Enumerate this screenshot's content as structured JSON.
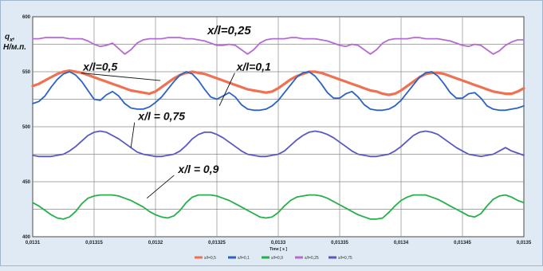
{
  "chart_data": {
    "type": "line",
    "title": "",
    "xlabel": "Time [ s ]",
    "ylabel": "q_x, Н/м.п.",
    "ylabel_main": "q",
    "ylabel_sub": "x",
    "ylabel_unit": "Н/м.п.",
    "xlim": [
      0.0131,
      0.0135
    ],
    "ylim": [
      400,
      600
    ],
    "grid": true,
    "legend_position": "bottom-center",
    "x_ticks": [
      "0,0131",
      "0,01315",
      "0,0132",
      "0,01325",
      "0,0133",
      "0,01335",
      "0,0134",
      "0,01345",
      "0,0135"
    ],
    "y_ticks": [
      "400",
      "450",
      "500",
      "550",
      "600"
    ],
    "x_tick_values": [
      0.0131,
      0.01315,
      0.0132,
      0.01325,
      0.0133,
      0.01335,
      0.0134,
      0.01345,
      0.0135
    ],
    "y_tick_values": [
      400,
      450,
      500,
      550,
      600
    ],
    "annotations": [
      {
        "text": "x/l=0,25",
        "x": 0.01326,
        "y": 584,
        "style": "top"
      },
      {
        "text": "x/l=0,5",
        "x": 0.013155,
        "y": 551,
        "style": "normal",
        "pointer": {
          "x": 0.013204,
          "y": 542
        }
      },
      {
        "text": "x/l=0,1",
        "x": 0.01328,
        "y": 551,
        "style": "normal",
        "pointer": {
          "x": 0.013252,
          "y": 519
        }
      },
      {
        "text": "x/l = 0,75",
        "x": 0.013205,
        "y": 506,
        "style": "normal",
        "pointer": {
          "x": 0.01318,
          "y": 481
        }
      },
      {
        "text": "x/l = 0,9",
        "x": 0.013235,
        "y": 458,
        "style": "normal",
        "pointer": {
          "x": 0.013193,
          "y": 435
        }
      }
    ],
    "series": [
      {
        "name": "x/l=0,5",
        "color": "#f07052",
        "width": 3.2,
        "x": [
          0.0131,
          0.013105,
          0.01311,
          0.013115,
          0.01312,
          0.013125,
          0.01313,
          0.013135,
          0.01314,
          0.013145,
          0.01315,
          0.013155,
          0.01316,
          0.013165,
          0.01317,
          0.013175,
          0.01318,
          0.013185,
          0.01319,
          0.013195,
          0.0132,
          0.013205,
          0.01321,
          0.013215,
          0.01322,
          0.013225,
          0.01323,
          0.013235,
          0.01324,
          0.013245,
          0.01325,
          0.013255,
          0.01326,
          0.013265,
          0.01327,
          0.013275,
          0.01328,
          0.013285,
          0.01329,
          0.013295,
          0.0133,
          0.013305,
          0.01331,
          0.013315,
          0.01332,
          0.013325,
          0.01333,
          0.013335,
          0.01334,
          0.013345,
          0.01335,
          0.013355,
          0.01336,
          0.013365,
          0.01337,
          0.013375,
          0.01338,
          0.013385,
          0.01339,
          0.013395,
          0.0134,
          0.013405,
          0.01341,
          0.013415,
          0.01342,
          0.013425,
          0.01343,
          0.013435,
          0.01344,
          0.013445,
          0.01345,
          0.013455,
          0.01346,
          0.013465,
          0.01347,
          0.013475,
          0.01348,
          0.013485,
          0.01349,
          0.013495,
          0.0135
        ],
        "y": [
          537,
          539,
          542,
          545,
          548,
          550,
          551,
          550,
          549,
          547,
          545,
          543,
          541,
          539,
          537,
          535,
          533,
          532,
          531,
          530,
          532,
          536,
          540,
          544,
          547,
          549,
          550,
          549,
          548,
          546,
          544,
          542,
          540,
          538,
          536,
          534,
          533,
          532,
          531,
          532,
          535,
          539,
          543,
          546,
          548,
          550,
          550,
          549,
          547,
          545,
          543,
          541,
          539,
          537,
          535,
          533,
          532,
          530,
          529,
          530,
          533,
          537,
          541,
          545,
          548,
          549,
          549,
          548,
          546,
          544,
          542,
          540,
          538,
          536,
          534,
          532,
          531,
          530,
          530,
          532,
          535
        ]
      },
      {
        "name": "x/l=0,1",
        "color": "#2c62c4",
        "width": 1.8,
        "x": [
          0.0131,
          0.013105,
          0.01311,
          0.013115,
          0.01312,
          0.013125,
          0.01313,
          0.013135,
          0.01314,
          0.013145,
          0.01315,
          0.013155,
          0.01316,
          0.013165,
          0.01317,
          0.013175,
          0.01318,
          0.013185,
          0.01319,
          0.013195,
          0.0132,
          0.013205,
          0.01321,
          0.013215,
          0.01322,
          0.013225,
          0.01323,
          0.013235,
          0.01324,
          0.013245,
          0.01325,
          0.013255,
          0.01326,
          0.013265,
          0.01327,
          0.013275,
          0.01328,
          0.013285,
          0.01329,
          0.013295,
          0.0133,
          0.013305,
          0.01331,
          0.013315,
          0.01332,
          0.013325,
          0.01333,
          0.013335,
          0.01334,
          0.013345,
          0.01335,
          0.013355,
          0.01336,
          0.013365,
          0.01337,
          0.013375,
          0.01338,
          0.013385,
          0.01339,
          0.013395,
          0.0134,
          0.013405,
          0.01341,
          0.013415,
          0.01342,
          0.013425,
          0.01343,
          0.013435,
          0.01344,
          0.013445,
          0.01345,
          0.013455,
          0.01346,
          0.013465,
          0.01347,
          0.013475,
          0.01348,
          0.013485,
          0.01349,
          0.013495,
          0.0135
        ],
        "y": [
          521,
          523,
          528,
          536,
          543,
          548,
          550,
          547,
          541,
          533,
          525,
          524,
          529,
          532,
          528,
          521,
          517,
          516,
          516,
          518,
          522,
          527,
          534,
          541,
          547,
          550,
          548,
          542,
          534,
          527,
          525,
          528,
          531,
          527,
          520,
          516,
          515,
          515,
          516,
          519,
          524,
          531,
          538,
          545,
          549,
          550,
          546,
          539,
          531,
          526,
          526,
          530,
          532,
          527,
          520,
          516,
          515,
          515,
          516,
          519,
          524,
          531,
          538,
          545,
          549,
          550,
          546,
          539,
          531,
          526,
          526,
          530,
          531,
          526,
          519,
          516,
          515,
          515,
          516,
          517,
          519
        ]
      },
      {
        "name": "x/l=0,9",
        "color": "#26b04a",
        "width": 1.8,
        "x": [
          0.0131,
          0.013105,
          0.01311,
          0.013115,
          0.01312,
          0.013125,
          0.01313,
          0.013135,
          0.01314,
          0.013145,
          0.01315,
          0.013155,
          0.01316,
          0.013165,
          0.01317,
          0.013175,
          0.01318,
          0.013185,
          0.01319,
          0.013195,
          0.0132,
          0.013205,
          0.01321,
          0.013215,
          0.01322,
          0.013225,
          0.01323,
          0.013235,
          0.01324,
          0.013245,
          0.01325,
          0.013255,
          0.01326,
          0.013265,
          0.01327,
          0.013275,
          0.01328,
          0.013285,
          0.01329,
          0.013295,
          0.0133,
          0.013305,
          0.01331,
          0.013315,
          0.01332,
          0.013325,
          0.01333,
          0.013335,
          0.01334,
          0.013345,
          0.01335,
          0.013355,
          0.01336,
          0.013365,
          0.01337,
          0.013375,
          0.01338,
          0.013385,
          0.01339,
          0.013395,
          0.0134,
          0.013405,
          0.01341,
          0.013415,
          0.01342,
          0.013425,
          0.01343,
          0.013435,
          0.01344,
          0.013445,
          0.01345,
          0.013455,
          0.01346,
          0.013465,
          0.01347,
          0.013475,
          0.01348,
          0.013485,
          0.01349,
          0.013495,
          0.0135
        ],
        "y": [
          431,
          428,
          424,
          420,
          417,
          416,
          418,
          423,
          430,
          435,
          437,
          438,
          438,
          438,
          437,
          435,
          433,
          430,
          427,
          423,
          420,
          418,
          417,
          419,
          424,
          431,
          436,
          438,
          438,
          438,
          437,
          435,
          433,
          430,
          427,
          424,
          421,
          418,
          417,
          418,
          422,
          428,
          433,
          436,
          437,
          438,
          438,
          437,
          435,
          432,
          429,
          426,
          423,
          420,
          418,
          416,
          416,
          417,
          422,
          428,
          433,
          436,
          438,
          438,
          438,
          436,
          434,
          431,
          428,
          425,
          422,
          419,
          418,
          421,
          428,
          434,
          437,
          438,
          436,
          433,
          431
        ]
      },
      {
        "name": "x/l=0,25",
        "color": "#b56bd1",
        "width": 1.8,
        "x": [
          0.0131,
          0.013105,
          0.01311,
          0.013115,
          0.01312,
          0.013125,
          0.01313,
          0.013135,
          0.01314,
          0.013145,
          0.01315,
          0.013155,
          0.01316,
          0.013165,
          0.01317,
          0.013175,
          0.01318,
          0.013185,
          0.01319,
          0.013195,
          0.0132,
          0.013205,
          0.01321,
          0.013215,
          0.01322,
          0.013225,
          0.01323,
          0.013235,
          0.01324,
          0.013245,
          0.01325,
          0.013255,
          0.01326,
          0.013265,
          0.01327,
          0.013275,
          0.01328,
          0.013285,
          0.01329,
          0.013295,
          0.0133,
          0.013305,
          0.01331,
          0.013315,
          0.01332,
          0.013325,
          0.01333,
          0.013335,
          0.01334,
          0.013345,
          0.01335,
          0.013355,
          0.01336,
          0.013365,
          0.01337,
          0.013375,
          0.01338,
          0.013385,
          0.01339,
          0.013395,
          0.0134,
          0.013405,
          0.01341,
          0.013415,
          0.01342,
          0.013425,
          0.01343,
          0.013435,
          0.01344,
          0.013445,
          0.01345,
          0.013455,
          0.01346,
          0.013465,
          0.01347,
          0.013475,
          0.01348,
          0.013485,
          0.01349,
          0.013495,
          0.0135
        ],
        "y": [
          580,
          580,
          581,
          581,
          581,
          581,
          580,
          580,
          580,
          578,
          575,
          573,
          574,
          576,
          571,
          566,
          570,
          576,
          579,
          580,
          580,
          580,
          581,
          581,
          581,
          580,
          580,
          579,
          578,
          576,
          574,
          574,
          575,
          574,
          570,
          566,
          570,
          576,
          579,
          580,
          580,
          580,
          581,
          581,
          580,
          580,
          580,
          579,
          578,
          576,
          574,
          573,
          575,
          574,
          570,
          566,
          570,
          576,
          579,
          580,
          580,
          580,
          581,
          581,
          580,
          580,
          580,
          579,
          578,
          576,
          574,
          573,
          575,
          574,
          570,
          566,
          569,
          574,
          577,
          579,
          579
        ]
      },
      {
        "name": "x/l=0,75",
        "color": "#5858c4",
        "width": 1.8,
        "x": [
          0.0131,
          0.013105,
          0.01311,
          0.013115,
          0.01312,
          0.013125,
          0.01313,
          0.013135,
          0.01314,
          0.013145,
          0.01315,
          0.013155,
          0.01316,
          0.013165,
          0.01317,
          0.013175,
          0.01318,
          0.013185,
          0.01319,
          0.013195,
          0.0132,
          0.013205,
          0.01321,
          0.013215,
          0.01322,
          0.013225,
          0.01323,
          0.013235,
          0.01324,
          0.013245,
          0.01325,
          0.013255,
          0.01326,
          0.013265,
          0.01327,
          0.013275,
          0.01328,
          0.013285,
          0.01329,
          0.013295,
          0.0133,
          0.013305,
          0.01331,
          0.013315,
          0.01332,
          0.013325,
          0.01333,
          0.013335,
          0.01334,
          0.013345,
          0.01335,
          0.013355,
          0.01336,
          0.013365,
          0.01337,
          0.013375,
          0.01338,
          0.013385,
          0.01339,
          0.013395,
          0.0134,
          0.013405,
          0.01341,
          0.013415,
          0.01342,
          0.013425,
          0.01343,
          0.013435,
          0.01344,
          0.013445,
          0.01345,
          0.013455,
          0.01346,
          0.013465,
          0.01347,
          0.013475,
          0.01348,
          0.013485,
          0.01349,
          0.013495,
          0.0135
        ],
        "y": [
          474,
          473,
          473,
          473,
          474,
          475,
          478,
          482,
          487,
          492,
          495,
          496,
          495,
          492,
          489,
          485,
          481,
          477,
          475,
          474,
          473,
          473,
          474,
          475,
          478,
          483,
          489,
          493,
          495,
          495,
          493,
          490,
          486,
          482,
          478,
          475,
          474,
          473,
          473,
          474,
          475,
          478,
          483,
          488,
          492,
          495,
          496,
          495,
          493,
          490,
          486,
          482,
          478,
          475,
          474,
          473,
          473,
          474,
          475,
          478,
          482,
          487,
          492,
          495,
          496,
          495,
          493,
          489,
          485,
          481,
          478,
          475,
          474,
          473,
          474,
          475,
          478,
          481,
          478,
          476,
          474
        ]
      }
    ]
  }
}
